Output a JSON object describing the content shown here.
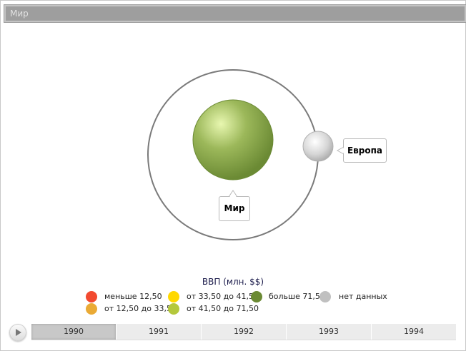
{
  "title": "Мир",
  "nodes": {
    "center": {
      "label": "Мир",
      "color": "#6b8a34"
    },
    "satellite": {
      "label": "Европа",
      "color": "#c0c0c0"
    }
  },
  "legend": {
    "title": "ВВП (млн. $$)",
    "items": [
      {
        "label": "меньше 12,50",
        "color": "#f24a30"
      },
      {
        "label": "от 12,50 до 33,50",
        "color": "#eaaa35"
      },
      {
        "label": "от 33,50 до 41,50",
        "color": "#ffd800"
      },
      {
        "label": "от 41,50 до 71,50",
        "color": "#b4c83c"
      },
      {
        "label": "больше 71,50",
        "color": "#6b8a34"
      },
      {
        "label": "нет данных",
        "color": "#c0c0c0"
      }
    ]
  },
  "timeline": {
    "years": [
      "1990",
      "1991",
      "1992",
      "1993",
      "1994"
    ],
    "selected": "1990"
  }
}
